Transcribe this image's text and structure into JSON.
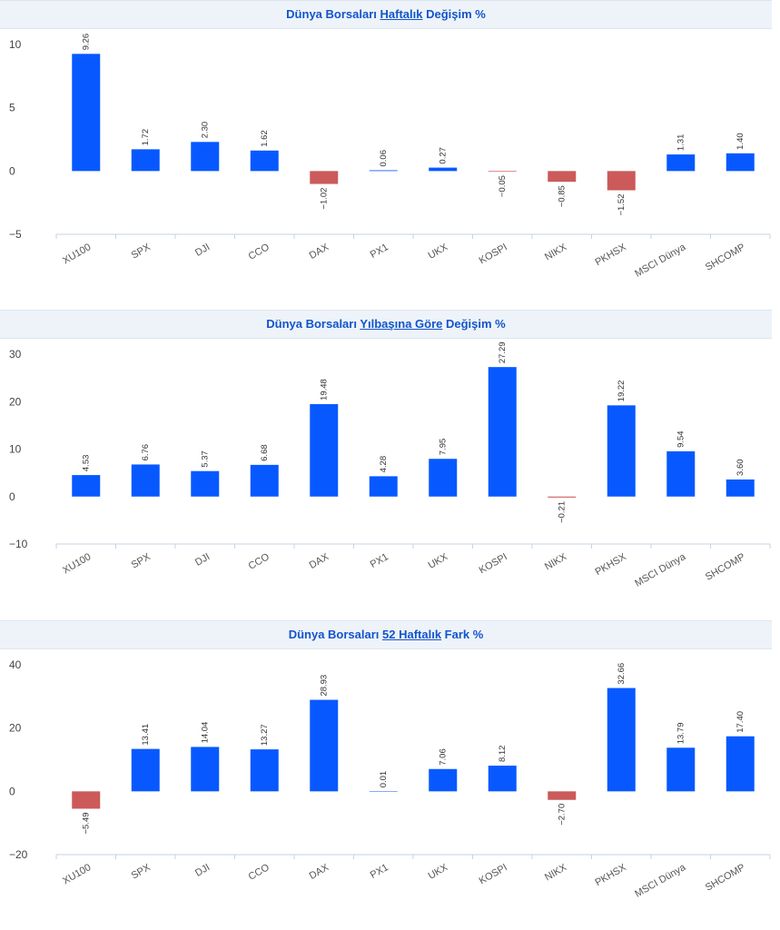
{
  "colors": {
    "positive": "#0759ff",
    "negative": "#cc5a5a",
    "title": "#1255cc"
  },
  "chart_data": [
    {
      "type": "bar",
      "title_parts": [
        "Dünya Borsaları ",
        "Haftalık",
        " Değişim %"
      ],
      "categories": [
        "XU100",
        "SPX",
        "DJI",
        "CCO",
        "DAX",
        "PX1",
        "UKX",
        "KOSPI",
        "NIKX",
        "PKHSX",
        "MSCI Dünya",
        "SHCOMP"
      ],
      "values": [
        9.26,
        1.72,
        2.3,
        1.62,
        -1.02,
        0.06,
        0.27,
        -0.05,
        -0.85,
        -1.52,
        1.31,
        1.4
      ],
      "labels": [
        "9.26",
        "1.72",
        "2.30",
        "1.62",
        "−1.02",
        "0.06",
        "0.27",
        "−0.05",
        "−0.85",
        "−1.52",
        "1.31",
        "1.40"
      ],
      "yticks": [
        "−5",
        "0",
        "5",
        "10"
      ],
      "ylim": [
        -5,
        10
      ],
      "grid": false
    },
    {
      "type": "bar",
      "title_parts": [
        "Dünya Borsaları ",
        "Yılbaşına Göre",
        " Değişim %"
      ],
      "categories": [
        "XU100",
        "SPX",
        "DJI",
        "CCO",
        "DAX",
        "PX1",
        "UKX",
        "KOSPI",
        "NIKX",
        "PKHSX",
        "MSCI Dünya",
        "SHCOMP"
      ],
      "values": [
        4.53,
        6.76,
        5.37,
        6.68,
        19.48,
        4.28,
        7.95,
        27.29,
        -0.21,
        19.22,
        9.54,
        3.6
      ],
      "labels": [
        "4.53",
        "6.76",
        "5.37",
        "6.68",
        "19.48",
        "4.28",
        "7.95",
        "27.29",
        "−0.21",
        "19.22",
        "9.54",
        "3.60"
      ],
      "yticks": [
        "−10",
        "0",
        "10",
        "20",
        "30"
      ],
      "ylim": [
        -10,
        30
      ],
      "grid": false
    },
    {
      "type": "bar",
      "title_parts": [
        "Dünya Borsaları ",
        "52 Haftalık",
        " Fark %"
      ],
      "categories": [
        "XU100",
        "SPX",
        "DJI",
        "CCO",
        "DAX",
        "PX1",
        "UKX",
        "KOSPI",
        "NIKX",
        "PKHSX",
        "MSCI Dünya",
        "SHCOMP"
      ],
      "values": [
        -5.49,
        13.41,
        14.04,
        13.27,
        28.93,
        0.01,
        7.06,
        8.12,
        -2.7,
        32.66,
        13.79,
        17.4
      ],
      "labels": [
        "−5.49",
        "13.41",
        "14.04",
        "13.27",
        "28.93",
        "0.01",
        "7.06",
        "8.12",
        "−2.70",
        "32.66",
        "13.79",
        "17.40"
      ],
      "yticks": [
        "−20",
        "0",
        "20",
        "40"
      ],
      "ylim": [
        -20,
        40
      ],
      "grid": false
    }
  ]
}
